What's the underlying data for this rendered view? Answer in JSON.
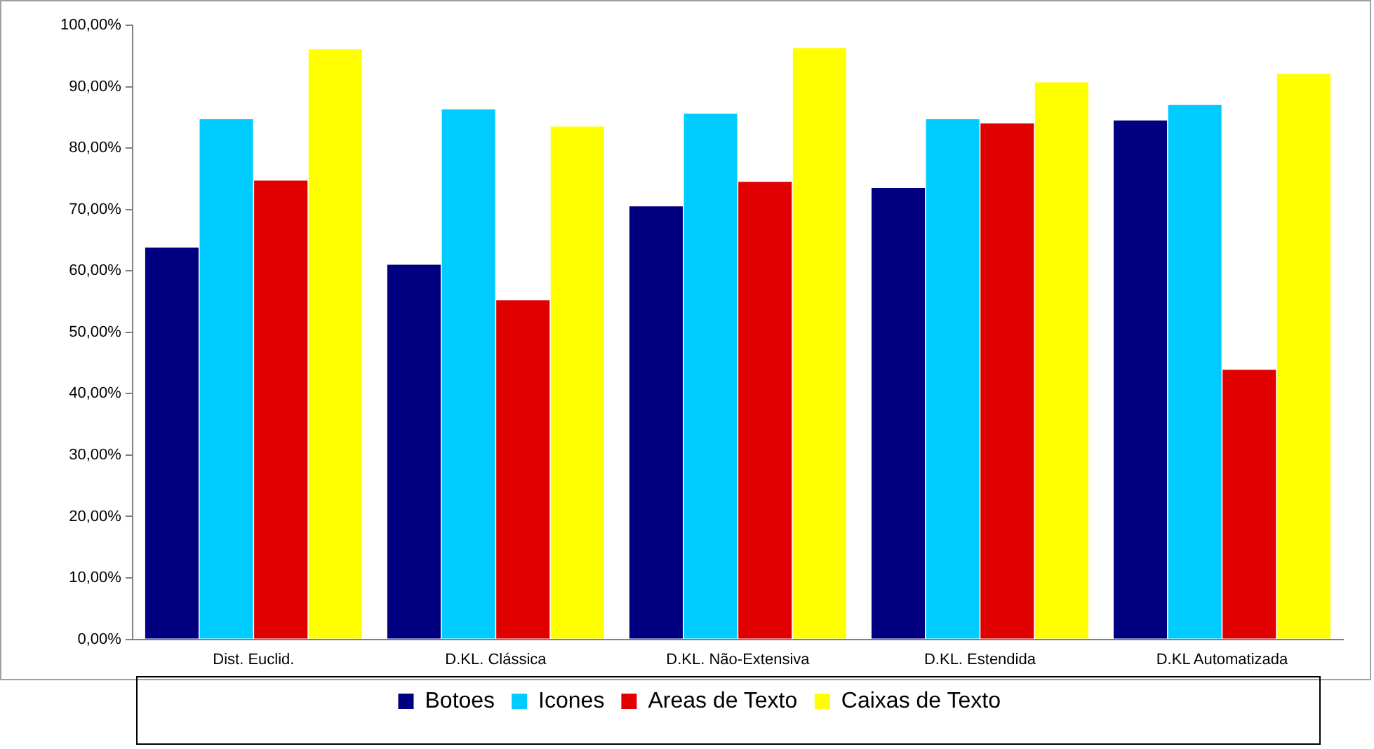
{
  "chart_data": {
    "type": "bar",
    "categories": [
      "Dist. Euclid.",
      "D.KL. Clássica",
      "D.KL. Não-Extensiva",
      "D.KL. Estendida",
      "D.KL Automatizada"
    ],
    "series": [
      {
        "name": "Botoes",
        "color": "#000080",
        "values": [
          63.8,
          61.0,
          70.5,
          73.5,
          84.5
        ]
      },
      {
        "name": "Icones",
        "color": "#00ccff",
        "values": [
          84.7,
          86.3,
          85.6,
          84.7,
          87.0
        ]
      },
      {
        "name": "Areas de Texto",
        "color": "#e00000",
        "values": [
          74.7,
          55.2,
          74.5,
          84.0,
          43.9
        ]
      },
      {
        "name": "Caixas de Texto",
        "color": "#ffff00",
        "values": [
          96.1,
          83.5,
          96.3,
          90.7,
          92.1
        ]
      }
    ],
    "ylim": [
      0,
      100
    ],
    "yticks": [
      {
        "value": 0,
        "label": "0,00%"
      },
      {
        "value": 10,
        "label": "10,00%"
      },
      {
        "value": 20,
        "label": "20,00%"
      },
      {
        "value": 30,
        "label": "30,00%"
      },
      {
        "value": 40,
        "label": "40,00%"
      },
      {
        "value": 50,
        "label": "50,00%"
      },
      {
        "value": 60,
        "label": "60,00%"
      },
      {
        "value": 70,
        "label": "70,00%"
      },
      {
        "value": 80,
        "label": "80,00%"
      },
      {
        "value": 90,
        "label": "90,00%"
      },
      {
        "value": 100,
        "label": "100,00%"
      }
    ],
    "grid": false,
    "legend": "bottom"
  }
}
